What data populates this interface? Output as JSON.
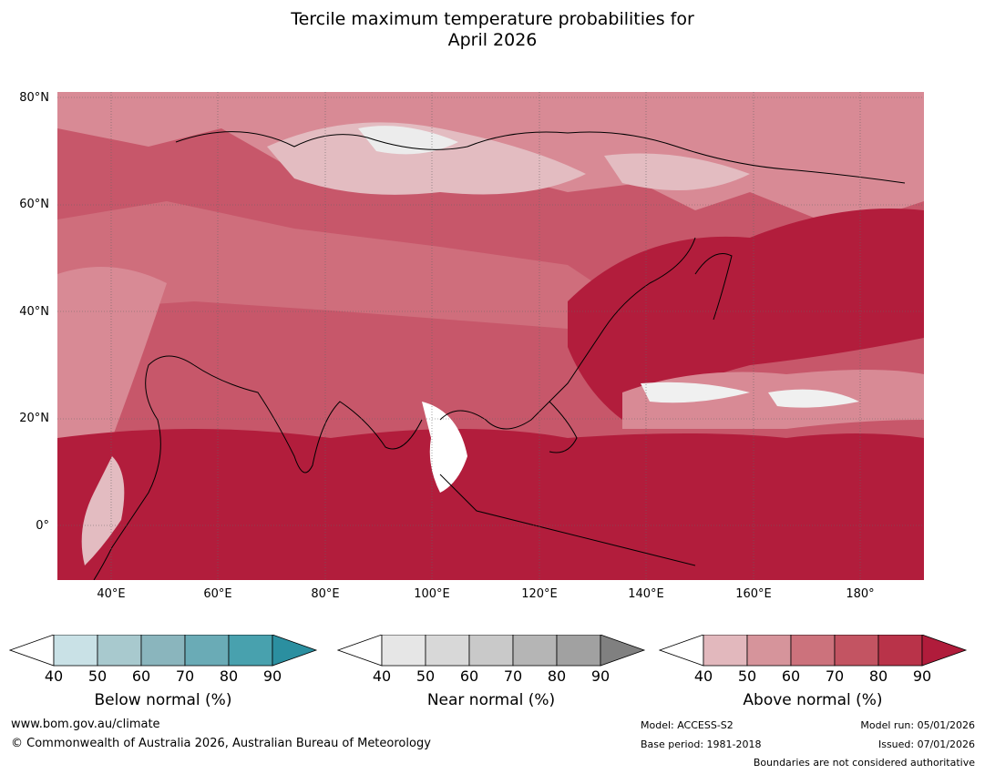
{
  "title_line1": "Tercile maximum temperature probabilities for",
  "title_line2": "April 2026",
  "map": {
    "lat_labels": [
      "80°N",
      "60°N",
      "40°N",
      "20°N",
      "0°"
    ],
    "lon_labels": [
      "40°E",
      "60°E",
      "80°E",
      "100°E",
      "120°E",
      "140°E",
      "160°E",
      "180°"
    ]
  },
  "legends": [
    {
      "title": "Below normal (%)",
      "ticks": [
        "40",
        "50",
        "60",
        "70",
        "80",
        "90"
      ],
      "colors": [
        "#ffffff",
        "#c9e1e6",
        "#a8c9ce",
        "#8ab5bd",
        "#6aabb6",
        "#48a1ae",
        "#2b8fa0"
      ]
    },
    {
      "title": "Near normal (%)",
      "ticks": [
        "40",
        "50",
        "60",
        "70",
        "80",
        "90"
      ],
      "colors": [
        "#ffffff",
        "#e6e6e6",
        "#d8d8d8",
        "#c9c9c9",
        "#b5b5b5",
        "#a1a1a1",
        "#808080"
      ]
    },
    {
      "title": "Above normal (%)",
      "ticks": [
        "40",
        "50",
        "60",
        "70",
        "80",
        "90"
      ],
      "colors": [
        "#ffffff",
        "#e2b8bd",
        "#d6949b",
        "#cc727c",
        "#c35462",
        "#b93349",
        "#b01c3b"
      ]
    }
  ],
  "footer": {
    "url": "www.bom.gov.au/climate",
    "copyright": "© Commonwealth of Australia 2026, Australian Bureau of Meteorology",
    "model": "Model: ACCESS-S2",
    "base_period": "Base period: 1981-2018",
    "model_run": "Model run: 05/01/2026",
    "issued": "Issued: 07/01/2026",
    "disclaimer": "Boundaries are not considered authoritative"
  }
}
